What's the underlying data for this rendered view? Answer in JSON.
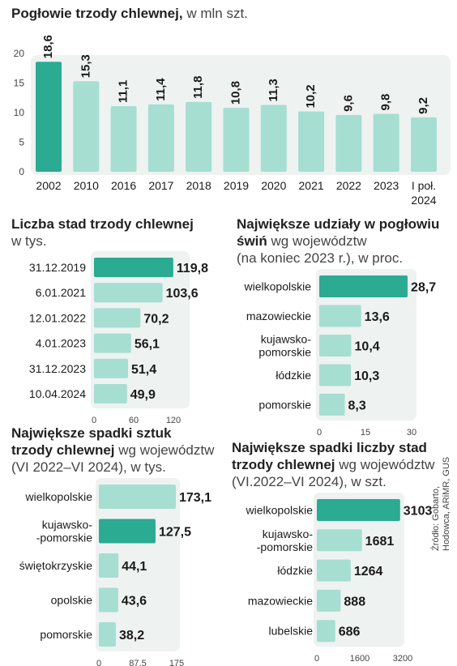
{
  "colors": {
    "highlight": "#2aab92",
    "bar": "#a6ded2",
    "panel": "#eef2f1",
    "text": "#1a1a1a",
    "axis": "#444444"
  },
  "source": {
    "line1": "Źródło: Gobarto,",
    "line2": "Hodowca, ARiMR, GUS"
  },
  "chart_data": [
    {
      "type": "bar",
      "title": "Pogłowie trzody chlewnej,",
      "subtitle": "w mln szt.",
      "categories": [
        "2002",
        "2010",
        "2016",
        "2017",
        "2018",
        "2019",
        "2020",
        "2021",
        "2022",
        "2023",
        "I poł. 2024"
      ],
      "values": [
        18.6,
        15.3,
        11.1,
        11.4,
        11.8,
        10.8,
        11.3,
        10.2,
        9.6,
        9.8,
        9.2
      ],
      "value_labels": [
        "18,6",
        "15,3",
        "11,1",
        "11,4",
        "11,8",
        "10,8",
        "11,3",
        "10,2",
        "9,6",
        "9,8",
        "9,2"
      ],
      "yticks": [
        "0",
        "5",
        "10",
        "15",
        "20"
      ],
      "ylim": [
        0,
        20
      ],
      "highlight_index": 0,
      "grid": false
    },
    {
      "type": "bar",
      "orientation": "horizontal",
      "title": "Liczba stad trzody chlewnej",
      "subtitle": "w tys.",
      "categories": [
        "31.12.2019",
        "6.01.2021",
        "12.01.2022",
        "4.01.2023",
        "31.12.2023",
        "10.04.2024"
      ],
      "values": [
        119.8,
        103.6,
        70.2,
        56.1,
        51.4,
        49.9
      ],
      "value_labels": [
        "119,8",
        "103,6",
        "70,2",
        "56,1",
        "51,4",
        "49,9"
      ],
      "xticks": [
        "0",
        "60",
        "120"
      ],
      "xlim": [
        0,
        120
      ],
      "highlight_index": 0
    },
    {
      "type": "bar",
      "orientation": "horizontal",
      "title": "Największe udziały w pogłowiu",
      "title_line2": "świń",
      "subtitle": "wg województw",
      "subtitle_line2": "(na koniec 2023 r.), w proc.",
      "categories": [
        "wielkopolskie",
        "mazowieckie",
        "kujawsko-|pomorskie",
        "łódzkie",
        "pomorskie"
      ],
      "values": [
        28.7,
        13.6,
        10.4,
        10.3,
        8.3
      ],
      "value_labels": [
        "28,7",
        "13,6",
        "10,4",
        "10,3",
        "8,3"
      ],
      "xticks": [
        "0",
        "15",
        "30"
      ],
      "xlim": [
        0,
        30
      ],
      "highlight_index": 0
    },
    {
      "type": "bar",
      "orientation": "horizontal",
      "title": "Największe spadki sztuk",
      "title_line2": "trzody chlewnej",
      "subtitle": "wg województw",
      "subtitle_line2": "(VI 2022–VI 2024), w tys.",
      "categories": [
        "wielkopolskie",
        "kujawsko-|-pomorskie",
        "świętokrzyskie",
        "opolskie",
        "pomorskie"
      ],
      "values": [
        173.1,
        127.5,
        44.1,
        43.6,
        38.2
      ],
      "value_labels": [
        "173,1",
        "127,5",
        "44,1",
        "43,6",
        "38,2"
      ],
      "xticks": [
        "0",
        "87,5",
        "175"
      ],
      "xlim": [
        0,
        175
      ],
      "highlight_index": 1
    },
    {
      "type": "bar",
      "orientation": "horizontal",
      "title": "Największe spadki liczby stad",
      "title_line2": "trzody chlewnej",
      "subtitle": "wg województw",
      "subtitle_line2": "(VI.2022–VI 2024), w szt.",
      "categories": [
        "wielkopolskie",
        "kujawsko-|-pomorskie",
        "łódzkie",
        "mazowieckie",
        "lubelskie"
      ],
      "values": [
        3103,
        1681,
        1264,
        888,
        686
      ],
      "value_labels": [
        "3103",
        "1681",
        "1264",
        "888",
        "686"
      ],
      "xticks": [
        "0",
        "1600",
        "3200"
      ],
      "xlim": [
        0,
        3200
      ],
      "highlight_index": 0
    }
  ]
}
